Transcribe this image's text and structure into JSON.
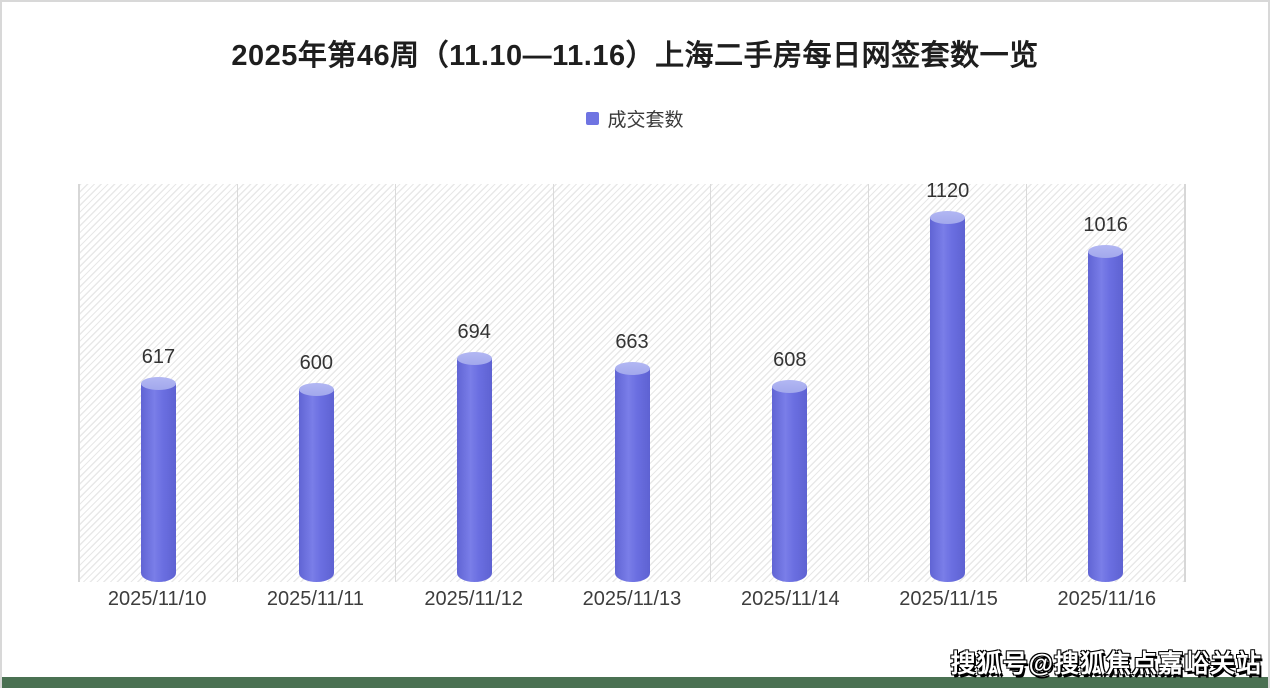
{
  "page": {
    "title": "2025年第46周（11.10—11.16）上海二手房每日网签套数一览",
    "watermark": "搜狐号@搜狐焦点嘉峪关站"
  },
  "legend": {
    "label": "成交套数"
  },
  "chart_data": {
    "type": "bar",
    "title": "2025年第46周（11.10—11.16）上海二手房每日网签套数一览",
    "categories": [
      "2025/11/10",
      "2025/11/11",
      "2025/11/12",
      "2025/11/13",
      "2025/11/14",
      "2025/11/15",
      "2025/11/16"
    ],
    "series": [
      {
        "name": "成交套数",
        "values": [
          617,
          600,
          694,
          663,
          608,
          1120,
          1016
        ]
      }
    ],
    "xlabel": "",
    "ylabel": "",
    "ylim": [
      0,
      1200
    ],
    "grid": "vertical-column-separators",
    "legend_position": "top-center",
    "bar_style": "cylinder-3d",
    "data_labels": true,
    "colors": {
      "bar": "#6a6ee0",
      "bar_cap": "#a9aeef",
      "hatch_line": "#e8e8e8",
      "footer_strip": "#4a7152"
    }
  }
}
